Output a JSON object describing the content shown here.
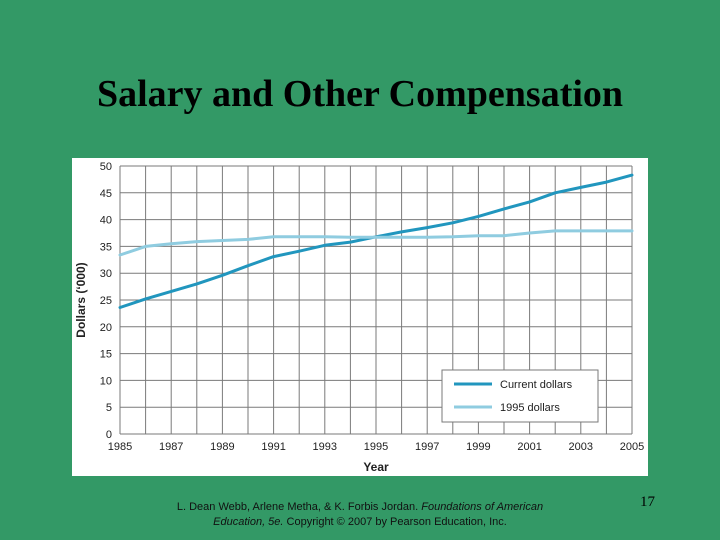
{
  "slide": {
    "title": "Salary and Other Compensation",
    "citation_authors": "L. Dean Webb, Arlene Metha, & K. Forbis Jordan. ",
    "citation_title": "Foundations of American Education, 5e.",
    "citation_rights": " Copyright © 2007 by Pearson Education, Inc.",
    "page_number": "17"
  },
  "chart_data": {
    "type": "line",
    "title": "",
    "xlabel": "Year",
    "ylabel": "Dollars (‘000)",
    "xlim": [
      1985,
      2005
    ],
    "ylim": [
      0,
      50
    ],
    "xticks": [
      1985,
      1987,
      1989,
      1991,
      1993,
      1995,
      1997,
      1999,
      2001,
      2003,
      2005
    ],
    "yticks": [
      0,
      5,
      10,
      15,
      20,
      25,
      30,
      35,
      40,
      45,
      50
    ],
    "grid": true,
    "legend": "bottom-right",
    "series": [
      {
        "name": "Current dollars",
        "color": "#2196BE",
        "points": [
          [
            1985,
            23.6
          ],
          [
            1986,
            25.2
          ],
          [
            1987,
            26.6
          ],
          [
            1988,
            28.0
          ],
          [
            1989,
            29.6
          ],
          [
            1990,
            31.4
          ],
          [
            1991,
            33.1
          ],
          [
            1992,
            34.1
          ],
          [
            1993,
            35.2
          ],
          [
            1994,
            35.8
          ],
          [
            1995,
            36.8
          ],
          [
            1996,
            37.7
          ],
          [
            1997,
            38.5
          ],
          [
            1998,
            39.4
          ],
          [
            1999,
            40.6
          ],
          [
            2000,
            42.0
          ],
          [
            2001,
            43.3
          ],
          [
            2002,
            45.0
          ],
          [
            2003,
            46.0
          ],
          [
            2004,
            47.0
          ],
          [
            2005,
            48.3
          ]
        ]
      },
      {
        "name": "1995 dollars",
        "color": "#8FCCE0",
        "points": [
          [
            1985,
            33.4
          ],
          [
            1986,
            35.0
          ],
          [
            1987,
            35.5
          ],
          [
            1988,
            35.9
          ],
          [
            1989,
            36.1
          ],
          [
            1990,
            36.3
          ],
          [
            1991,
            36.8
          ],
          [
            1992,
            36.8
          ],
          [
            1993,
            36.8
          ],
          [
            1994,
            36.7
          ],
          [
            1995,
            36.7
          ],
          [
            1996,
            36.7
          ],
          [
            1997,
            36.7
          ],
          [
            1998,
            36.8
          ],
          [
            1999,
            37.0
          ],
          [
            2000,
            37.0
          ],
          [
            2001,
            37.5
          ],
          [
            2002,
            37.9
          ],
          [
            2003,
            37.9
          ],
          [
            2004,
            37.9
          ],
          [
            2005,
            37.9
          ]
        ]
      }
    ]
  }
}
